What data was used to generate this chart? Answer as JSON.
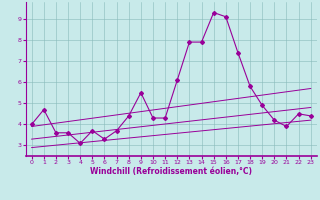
{
  "title": "",
  "xlabel": "Windchill (Refroidissement éolien,°C)",
  "ylabel": "",
  "bg_color": "#c8eaea",
  "grid_color": "#88bbbb",
  "line_color": "#990099",
  "xlim": [
    -0.5,
    23.5
  ],
  "ylim": [
    2.5,
    9.8
  ],
  "yticks": [
    3,
    4,
    5,
    6,
    7,
    8,
    9
  ],
  "xticks": [
    0,
    1,
    2,
    3,
    4,
    5,
    6,
    7,
    8,
    9,
    10,
    11,
    12,
    13,
    14,
    15,
    16,
    17,
    18,
    19,
    20,
    21,
    22,
    23
  ],
  "series1_x": [
    0,
    1,
    2,
    3,
    4,
    5,
    6,
    7,
    8,
    9,
    10,
    11,
    12,
    13,
    14,
    15,
    16,
    17,
    18,
    19,
    20,
    21,
    22,
    23
  ],
  "series1_y": [
    4.0,
    4.7,
    3.6,
    3.6,
    3.1,
    3.7,
    3.3,
    3.7,
    4.4,
    5.5,
    4.3,
    4.3,
    6.1,
    7.9,
    7.9,
    9.3,
    9.1,
    7.4,
    5.8,
    4.9,
    4.2,
    3.9,
    4.5,
    4.4
  ],
  "series2_x": [
    0,
    23
  ],
  "series2_y": [
    2.9,
    4.2
  ],
  "series3_x": [
    0,
    23
  ],
  "series3_y": [
    3.3,
    4.8
  ],
  "series4_x": [
    0,
    23
  ],
  "series4_y": [
    3.9,
    5.7
  ]
}
